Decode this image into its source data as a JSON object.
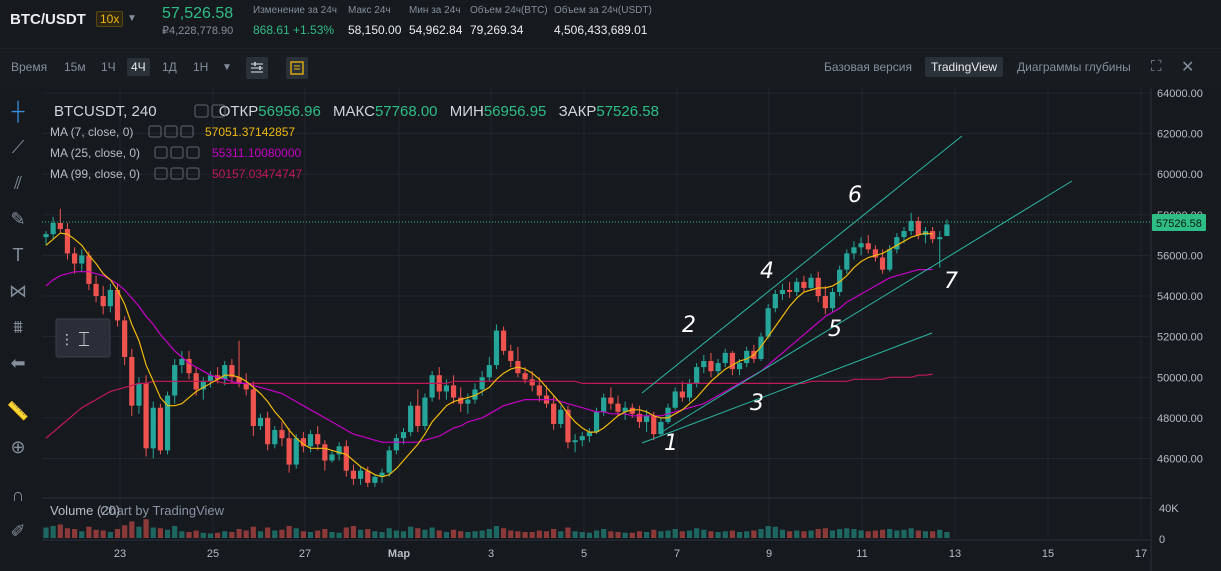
{
  "ticker": {
    "symbol": "BTC/USDT",
    "leverage": "10x",
    "last_price": "57,526.58",
    "last_price_rub": "₽4,228,778.90",
    "change_label": "Изменение за 24ч",
    "change_value": "868.61 +1.53%",
    "high_label": "Макс 24ч",
    "high_value": "58,150.00",
    "low_label": "Мин за 24ч",
    "low_value": "54,962.84",
    "vol_btc_label": "Объем 24ч(BTC)",
    "vol_btc_value": "79,269.34",
    "vol_usdt_label": "Объем за 24ч(USDT)",
    "vol_usdt_value": "4,506,433,689.01"
  },
  "toolbar": {
    "time_label": "Время",
    "intervals": [
      "15м",
      "1Ч",
      "4Ч",
      "1Д",
      "1Н"
    ],
    "active_interval": "4Ч",
    "basic_label": "Базовая версия",
    "tradingview_label": "TradingView",
    "depth_label": "Диаграммы глубины"
  },
  "legend": {
    "symbol": "BTCUSDT, 240",
    "open_label": "ОТКР",
    "open": "56956.96",
    "high_label": "МАКС",
    "high": "57768.00",
    "low_label": "МИН",
    "low": "56956.95",
    "close_label": "ЗАКР",
    "close": "57526.58",
    "ma7_label": "MA (7, close, 0)",
    "ma7_value": "57051.37142857",
    "ma25_label": "MA (25, close, 0)",
    "ma25_value": "55311.10080000",
    "ma99_label": "MA (99, close, 0)",
    "ma99_value": "50157.03474747",
    "volume_label": "Volume (20)",
    "watermark": "Chart by TradingView"
  },
  "colors": {
    "up": "#26a69a",
    "down": "#ef5350",
    "ma7": "#f0b90b",
    "ma25": "#c700c7",
    "ma99": "#c2185b",
    "channel": "#2bb5a2",
    "bg": "#161a1e",
    "grid": "#23272e",
    "price_tag": "#2ebd85"
  },
  "chart_data": {
    "type": "candlestick",
    "x_ticks": [
      "23",
      "25",
      "27",
      "Мар",
      "3",
      "5",
      "7",
      "9",
      "11",
      "13",
      "15",
      "17"
    ],
    "y_ticks": [
      "64000.00",
      "62000.00",
      "60000.00",
      "58000.00",
      "56000.00",
      "54000.00",
      "52000.00",
      "50000.00",
      "48000.00",
      "46000.00"
    ],
    "ylim": [
      44300,
      64000
    ],
    "volume_ticks": [
      "40K",
      "0"
    ],
    "volume_max": 40000,
    "last_price_tag": "57526.58",
    "annotations": [
      "1",
      "2",
      "3",
      "4",
      "5",
      "6",
      "7"
    ],
    "candles": [
      [
        56900,
        57200,
        56500,
        57050
      ],
      [
        57050,
        57900,
        56800,
        57600
      ],
      [
        57600,
        58300,
        57100,
        57300
      ],
      [
        57300,
        57600,
        55800,
        56100
      ],
      [
        56100,
        56400,
        55100,
        55600
      ],
      [
        55600,
        56300,
        55200,
        56000
      ],
      [
        56000,
        56200,
        54300,
        54600
      ],
      [
        54600,
        55000,
        53700,
        54000
      ],
      [
        54000,
        54500,
        53100,
        53500
      ],
      [
        53500,
        54600,
        53200,
        54300
      ],
      [
        54300,
        54600,
        52500,
        52800
      ],
      [
        52800,
        53000,
        50600,
        51000
      ],
      [
        51000,
        51400,
        48100,
        48600
      ],
      [
        48600,
        50000,
        48200,
        49700
      ],
      [
        49700,
        50100,
        46100,
        46500
      ],
      [
        46500,
        48800,
        46000,
        48500
      ],
      [
        48500,
        48700,
        46200,
        46400
      ],
      [
        46400,
        49300,
        46200,
        49100
      ],
      [
        49100,
        50900,
        48700,
        50600
      ],
      [
        50600,
        51300,
        50200,
        50900
      ],
      [
        50900,
        51300,
        49900,
        50200
      ],
      [
        50200,
        50500,
        49100,
        49400
      ],
      [
        49400,
        50000,
        48900,
        49800
      ],
      [
        49800,
        50300,
        49500,
        50100
      ],
      [
        50100,
        50500,
        49700,
        49900
      ],
      [
        49900,
        50800,
        49600,
        50600
      ],
      [
        50600,
        50900,
        49700,
        50000
      ],
      [
        50000,
        51800,
        49500,
        49700
      ],
      [
        49700,
        50200,
        49100,
        49400
      ],
      [
        49400,
        49800,
        47100,
        47600
      ],
      [
        47600,
        48200,
        47400,
        48000
      ],
      [
        48000,
        48300,
        46400,
        46700
      ],
      [
        46700,
        47600,
        46500,
        47400
      ],
      [
        47400,
        47800,
        46600,
        47000
      ],
      [
        47000,
        47500,
        45300,
        45700
      ],
      [
        45700,
        47200,
        45500,
        47000
      ],
      [
        47000,
        47300,
        46300,
        46600
      ],
      [
        46600,
        47400,
        46300,
        47200
      ],
      [
        47200,
        47600,
        46400,
        46700
      ],
      [
        46700,
        46900,
        45400,
        45900
      ],
      [
        45900,
        46400,
        45800,
        46200
      ],
      [
        46200,
        46800,
        45900,
        46600
      ],
      [
        46600,
        46900,
        45100,
        45400
      ],
      [
        45400,
        45700,
        44700,
        45000
      ],
      [
        45000,
        45600,
        44700,
        45400
      ],
      [
        45400,
        45600,
        44600,
        44800
      ],
      [
        44800,
        45200,
        44600,
        45100
      ],
      [
        45100,
        45500,
        44800,
        45300
      ],
      [
        45300,
        46600,
        45100,
        46400
      ],
      [
        46400,
        47200,
        46200,
        47000
      ],
      [
        47000,
        47500,
        46700,
        47300
      ],
      [
        47300,
        48800,
        47100,
        48600
      ],
      [
        48600,
        49400,
        47300,
        47600
      ],
      [
        47600,
        49200,
        47400,
        49000
      ],
      [
        49000,
        50300,
        48800,
        50100
      ],
      [
        50100,
        50500,
        48900,
        49300
      ],
      [
        49300,
        49900,
        48900,
        49600
      ],
      [
        49600,
        50100,
        48700,
        49000
      ],
      [
        49000,
        49500,
        48300,
        48700
      ],
      [
        48700,
        49200,
        48200,
        48900
      ],
      [
        48900,
        49700,
        48700,
        49400
      ],
      [
        49400,
        50300,
        49100,
        50000
      ],
      [
        50000,
        51000,
        49800,
        50600
      ],
      [
        50600,
        52600,
        50400,
        52300
      ],
      [
        52300,
        52500,
        51100,
        51300
      ],
      [
        51300,
        51600,
        50500,
        50800
      ],
      [
        50800,
        51500,
        50000,
        50200
      ],
      [
        50200,
        50500,
        49700,
        49900
      ],
      [
        49900,
        50300,
        49300,
        49600
      ],
      [
        49600,
        50000,
        48800,
        49100
      ],
      [
        49100,
        49600,
        48500,
        48700
      ],
      [
        48700,
        49100,
        47400,
        47700
      ],
      [
        47700,
        48600,
        47500,
        48400
      ],
      [
        48400,
        48600,
        46500,
        46800
      ],
      [
        46800,
        47200,
        46300,
        46900
      ],
      [
        46900,
        47300,
        46600,
        47100
      ],
      [
        47100,
        47500,
        46800,
        47300
      ],
      [
        47300,
        48500,
        47200,
        48300
      ],
      [
        48300,
        49200,
        48100,
        49000
      ],
      [
        49000,
        49500,
        48400,
        48700
      ],
      [
        48700,
        49100,
        48100,
        48300
      ],
      [
        48300,
        48800,
        47900,
        48500
      ],
      [
        48500,
        48700,
        48000,
        48200
      ],
      [
        48200,
        48600,
        47500,
        47800
      ],
      [
        47800,
        48400,
        47300,
        48100
      ],
      [
        48100,
        48300,
        46900,
        47200
      ],
      [
        47200,
        48000,
        47100,
        47800
      ],
      [
        47800,
        48700,
        47700,
        48500
      ],
      [
        48500,
        49500,
        48400,
        49300
      ],
      [
        49300,
        49800,
        48800,
        49000
      ],
      [
        49000,
        49900,
        48800,
        49700
      ],
      [
        49700,
        50700,
        49500,
        50500
      ],
      [
        50500,
        51100,
        50200,
        50800
      ],
      [
        50800,
        51200,
        50000,
        50300
      ],
      [
        50300,
        50900,
        50100,
        50700
      ],
      [
        50700,
        51400,
        50500,
        51200
      ],
      [
        51200,
        51300,
        50100,
        50400
      ],
      [
        50400,
        50900,
        50100,
        50700
      ],
      [
        50700,
        51500,
        50500,
        51300
      ],
      [
        51300,
        51600,
        50700,
        50900
      ],
      [
        50900,
        52200,
        50800,
        52000
      ],
      [
        52000,
        53600,
        51900,
        53400
      ],
      [
        53400,
        54300,
        53200,
        54100
      ],
      [
        54100,
        54600,
        53800,
        54300
      ],
      [
        54300,
        54700,
        53900,
        54200
      ],
      [
        54200,
        54900,
        54000,
        54700
      ],
      [
        54700,
        55000,
        54200,
        54400
      ],
      [
        54400,
        55100,
        54300,
        54900
      ],
      [
        54900,
        55200,
        53700,
        54000
      ],
      [
        54000,
        54500,
        53100,
        53400
      ],
      [
        53400,
        54400,
        53200,
        54200
      ],
      [
        54200,
        55500,
        54000,
        55300
      ],
      [
        55300,
        56300,
        55100,
        56100
      ],
      [
        56100,
        56700,
        55800,
        56400
      ],
      [
        56400,
        56900,
        56000,
        56600
      ],
      [
        56600,
        57000,
        56100,
        56300
      ],
      [
        56300,
        56500,
        55700,
        55900
      ],
      [
        55900,
        56300,
        55100,
        55300
      ],
      [
        55300,
        56500,
        55200,
        56300
      ],
      [
        56300,
        57100,
        56100,
        56900
      ],
      [
        56900,
        57400,
        56600,
        57200
      ],
      [
        57200,
        58100,
        57000,
        57700
      ],
      [
        57700,
        57900,
        56800,
        57000
      ],
      [
        57000,
        57400,
        56600,
        57200
      ],
      [
        57200,
        57400,
        56600,
        56800
      ],
      [
        56800,
        57200,
        55400,
        56900
      ],
      [
        56957,
        57768,
        56957,
        57527
      ]
    ],
    "ma7": [
      56500,
      56800,
      57100,
      57050,
      56800,
      56500,
      56000,
      55600,
      55100,
      54800,
      54300,
      53600,
      52600,
      51800,
      50600,
      49800,
      49000,
      48600,
      48600,
      48700,
      49000,
      49300,
      49500,
      49700,
      49900,
      50100,
      50100,
      50000,
      49800,
      49500,
      49200,
      48800,
      48300,
      47900,
      47400,
      47000,
      46700,
      46500,
      46500,
      46500,
      46400,
      46300,
      46200,
      45900,
      45600,
      45400,
      45200,
      45100,
      45200,
      45500,
      45900,
      46300,
      46700,
      47200,
      47800,
      48200,
      48600,
      48800,
      48900,
      49000,
      49100,
      49300,
      49500,
      49900,
      50200,
      50400,
      50500,
      50400,
      50200,
      49900,
      49500,
      49100,
      48700,
      48200,
      47800,
      47500,
      47300,
      47300,
      47500,
      47800,
      48100,
      48300,
      48400,
      48400,
      48300,
      48100,
      48000,
      48000,
      48200,
      48400,
      48700,
      49000,
      49400,
      49800,
      50100,
      50400,
      50600,
      50800,
      50900,
      51100,
      51500,
      52000,
      52500,
      53000,
      53500,
      53900,
      54200,
      54300,
      54400,
      54400,
      54500,
      54700,
      55000,
      55400,
      55700,
      55900,
      56000,
      56100,
      56300,
      56500,
      56700,
      56900,
      57000,
      57100,
      57051
    ],
    "ma25": [
      54500,
      54800,
      55000,
      55100,
      55200,
      55200,
      55200,
      55100,
      55000,
      54800,
      54600,
      54300,
      53900,
      53500,
      53000,
      52600,
      52100,
      51700,
      51300,
      51000,
      50700,
      50500,
      50300,
      50100,
      50000,
      49900,
      49800,
      49700,
      49700,
      49600,
      49500,
      49400,
      49300,
      49200,
      49000,
      48800,
      48600,
      48400,
      48200,
      48000,
      47800,
      47600,
      47400,
      47200,
      47100,
      47000,
      46900,
      46800,
      46800,
      46800,
      46800,
      46800,
      46800,
      46900,
      47000,
      47100,
      47300,
      47500,
      47600,
      47800,
      47900,
      48000,
      48200,
      48400,
      48600,
      48700,
      48800,
      48900,
      48900,
      48900,
      48900,
      48900,
      48800,
      48700,
      48600,
      48500,
      48400,
      48300,
      48300,
      48200,
      48200,
      48200,
      48100,
      48100,
      48100,
      48100,
      48100,
      48200,
      48300,
      48400,
      48500,
      48600,
      48700,
      48900,
      49100,
      49300,
      49500,
      49700,
      49900,
      50100,
      50300,
      50600,
      50900,
      51200,
      51500,
      51800,
      52100,
      52400,
      52700,
      53000,
      53200,
      53400,
      53700,
      53900,
      54100,
      54300,
      54500,
      54700,
      54900,
      55000,
      55100,
      55200,
      55300,
      55300,
      55311
    ],
    "ma99": [
      47000,
      47300,
      47600,
      47900,
      48200,
      48500,
      48700,
      48900,
      49100,
      49300,
      49400,
      49500,
      49600,
      49700,
      49700,
      49800,
      49800,
      49800,
      49800,
      49800,
      49800,
      49800,
      49800,
      49800,
      49800,
      49700,
      49700,
      49700,
      49700,
      49700,
      49700,
      49700,
      49700,
      49700,
      49700,
      49700,
      49700,
      49700,
      49700,
      49700,
      49700,
      49700,
      49700,
      49700,
      49700,
      49700,
      49700,
      49700,
      49700,
      49700,
      49700,
      49700,
      49700,
      49700,
      49700,
      49700,
      49700,
      49800,
      49800,
      49800,
      49800,
      49800,
      49800,
      49800,
      49800,
      49800,
      49800,
      49800,
      49800,
      49800,
      49800,
      49800,
      49800,
      49800,
      49800,
      49700,
      49700,
      49700,
      49700,
      49700,
      49700,
      49700,
      49700,
      49700,
      49700,
      49700,
      49700,
      49700,
      49700,
      49700,
      49700,
      49700,
      49700,
      49700,
      49700,
      49700,
      49700,
      49700,
      49700,
      49700,
      49700,
      49700,
      49700,
      49700,
      49700,
      49700,
      49700,
      49800,
      49800,
      49800,
      49800,
      49800,
      49800,
      49900,
      49900,
      49900,
      49900,
      49900,
      50000,
      50000,
      50000,
      50000,
      50100,
      50100,
      50157
    ],
    "volumes": [
      14000,
      16000,
      18000,
      13000,
      12000,
      9000,
      15000,
      11000,
      10000,
      8000,
      12000,
      17000,
      22000,
      15000,
      25000,
      14000,
      13000,
      11000,
      16000,
      9000,
      8000,
      10000,
      7000,
      6000,
      7000,
      9000,
      8000,
      12000,
      10000,
      15000,
      9000,
      14000,
      10000,
      11000,
      16000,
      13000,
      9000,
      8000,
      10000,
      12000,
      8000,
      7000,
      14000,
      16000,
      11000,
      12000,
      9000,
      8000,
      13000,
      10000,
      9000,
      15000,
      13000,
      11000,
      14000,
      10000,
      8000,
      11000,
      9000,
      8000,
      9000,
      10000,
      12000,
      16000,
      13000,
      10000,
      9000,
      8000,
      8000,
      10000,
      9000,
      12000,
      9000,
      14000,
      9000,
      8000,
      7000,
      10000,
      12000,
      9000,
      8000,
      7000,
      7000,
      9000,
      8000,
      11000,
      9000,
      10000,
      12000,
      9000,
      10000,
      13000,
      11000,
      9000,
      8000,
      9000,
      10000,
      8000,
      9000,
      10000,
      12000,
      16000,
      15000,
      11000,
      9000,
      10000,
      9000,
      10000,
      12000,
      13000,
      10000,
      12000,
      13000,
      12000,
      10000,
      9000,
      10000,
      11000,
      12000,
      10000,
      11000,
      13000,
      10000,
      9000,
      9000,
      11000,
      8000
    ]
  }
}
